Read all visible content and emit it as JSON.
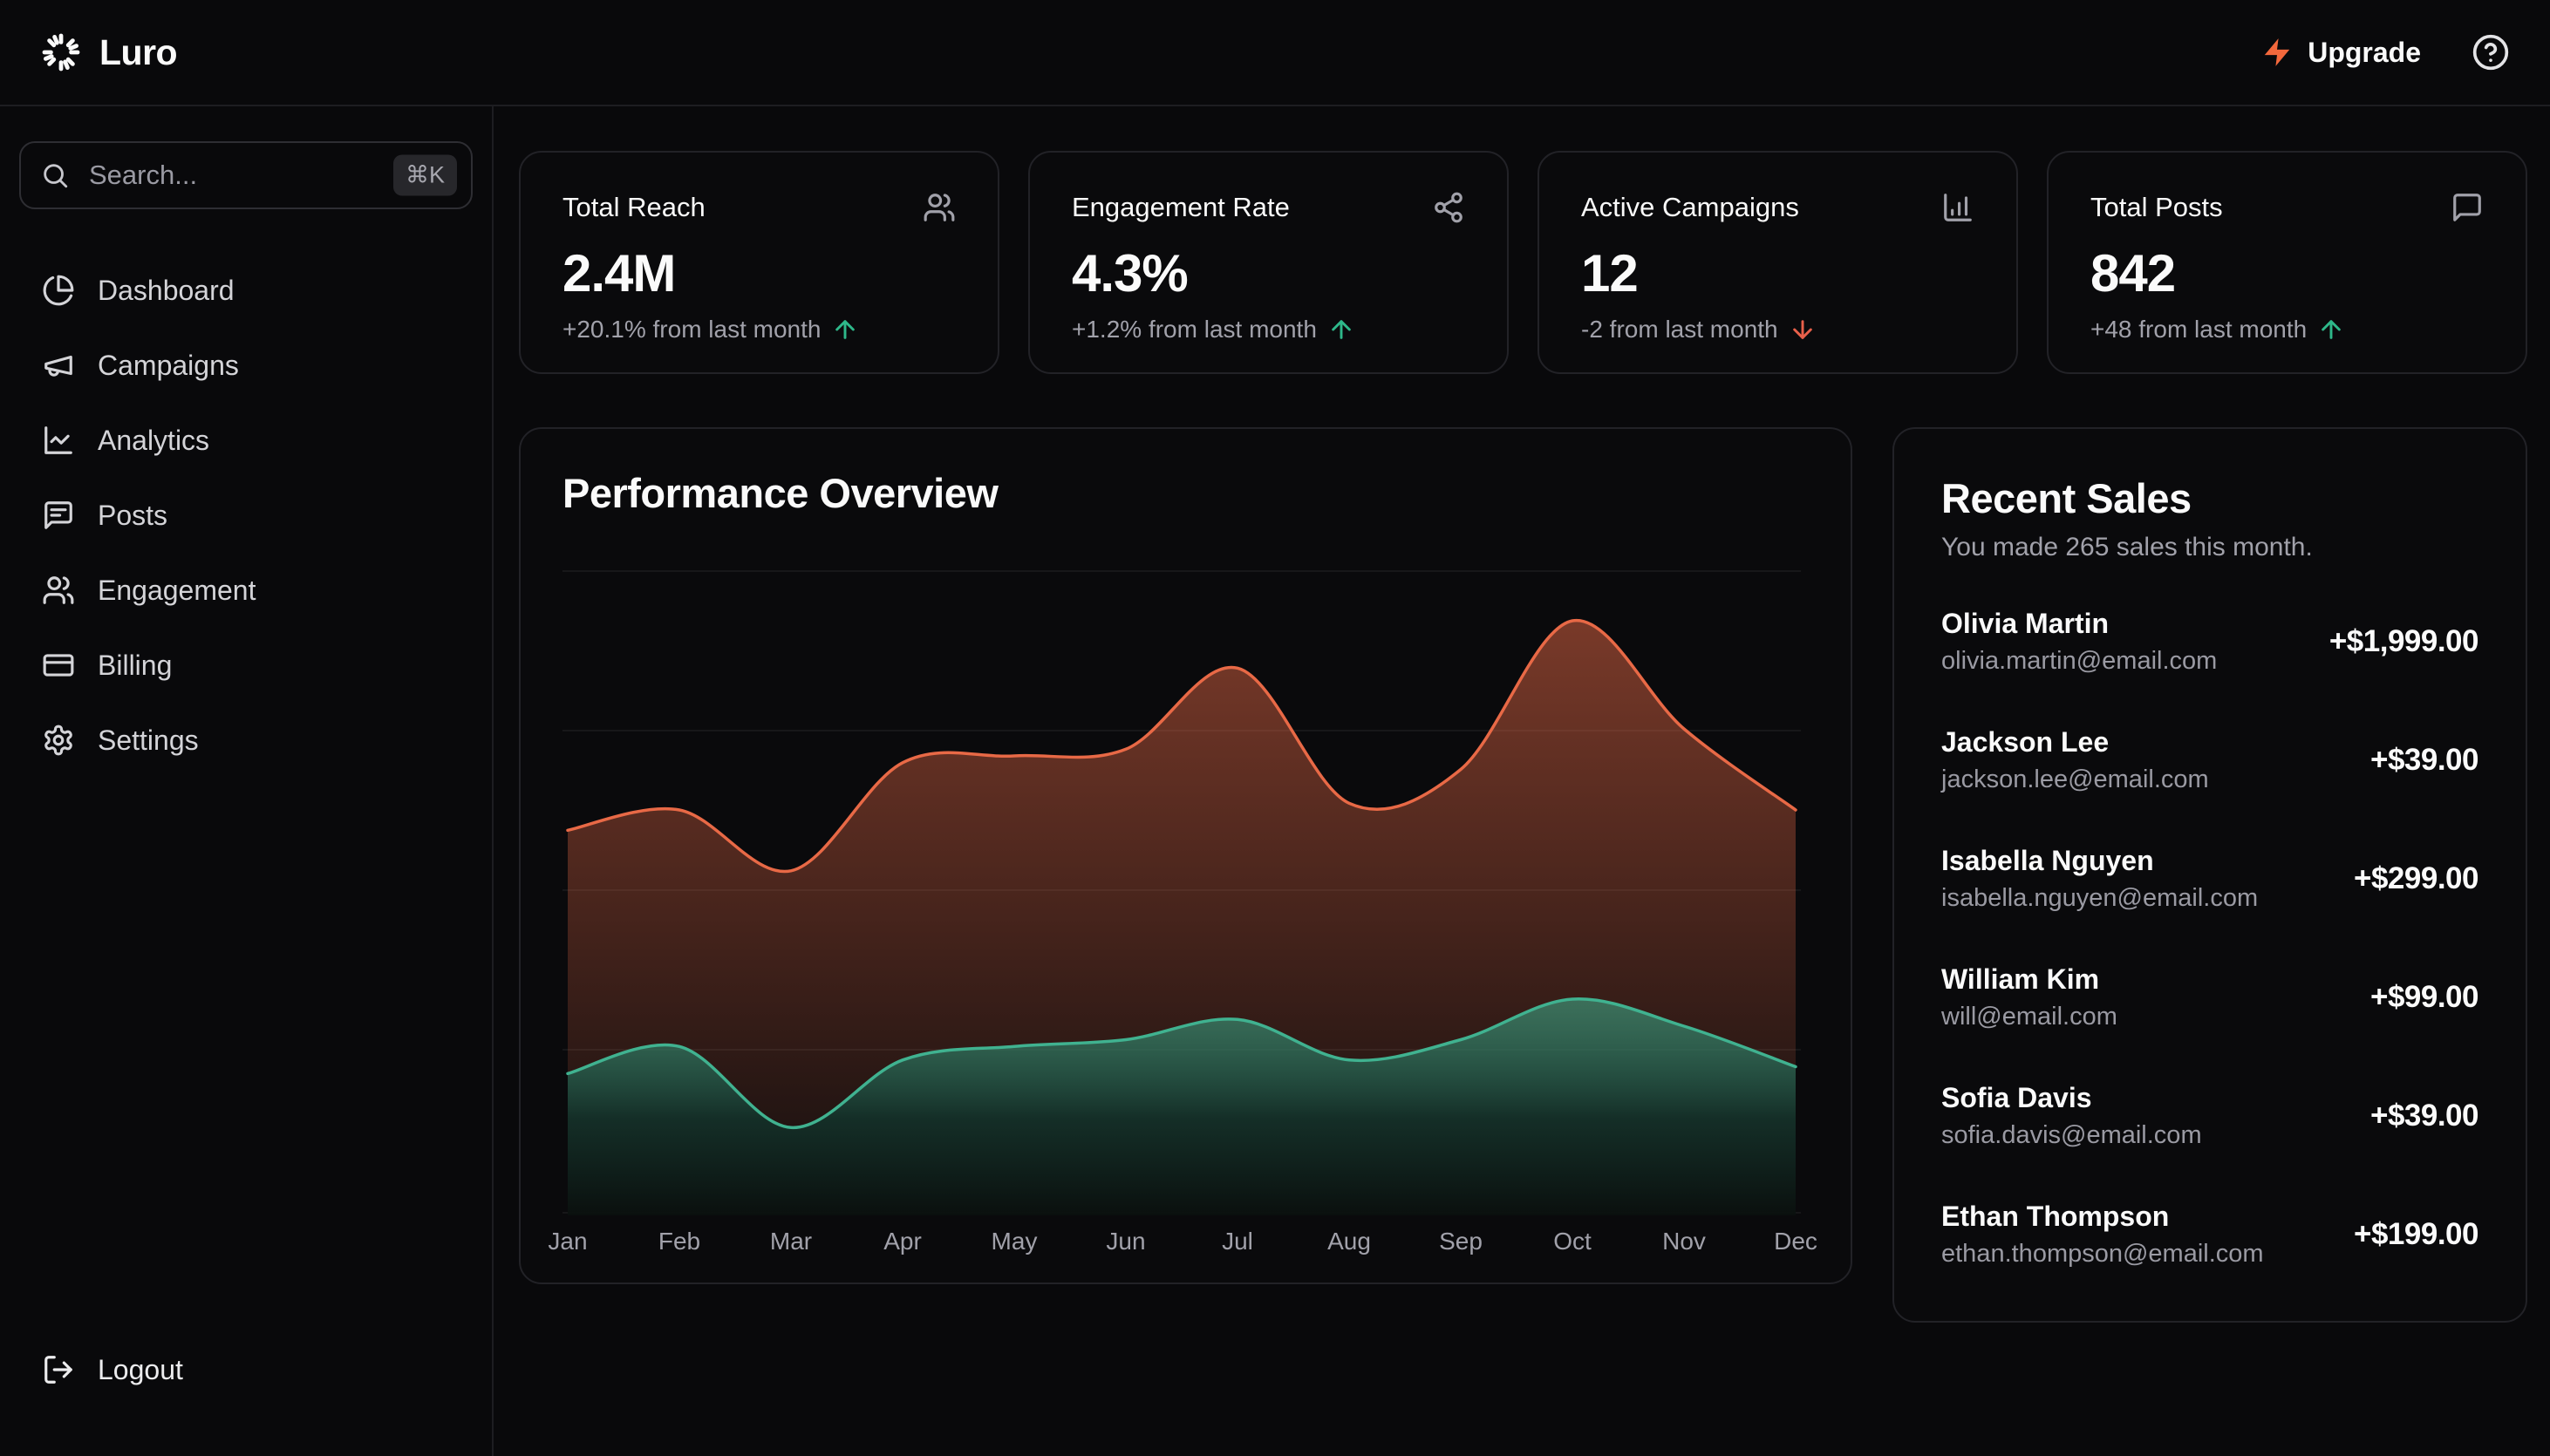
{
  "brand": {
    "name": "Luro",
    "logo_icon": "sunburst-spinner"
  },
  "header": {
    "upgrade_label": "Upgrade",
    "upgrade_icon": "lightning-bolt",
    "help_icon": "circle-question"
  },
  "sidebar": {
    "search": {
      "placeholder": "Search...",
      "shortcut": "⌘K",
      "icon": "magnifier"
    },
    "items": [
      {
        "label": "Dashboard",
        "icon": "pie-chart"
      },
      {
        "label": "Campaigns",
        "icon": "megaphone"
      },
      {
        "label": "Analytics",
        "icon": "line-chart"
      },
      {
        "label": "Posts",
        "icon": "message-square-text"
      },
      {
        "label": "Engagement",
        "icon": "users"
      },
      {
        "label": "Billing",
        "icon": "credit-card"
      },
      {
        "label": "Settings",
        "icon": "gear"
      }
    ],
    "logout": {
      "label": "Logout",
      "icon": "log-out"
    }
  },
  "stats": [
    {
      "title": "Total Reach",
      "icon": "users",
      "value": "2.4M",
      "delta": "+20.1% from last month",
      "trend": "up"
    },
    {
      "title": "Engagement Rate",
      "icon": "share-nodes",
      "value": "4.3%",
      "delta": "+1.2% from last month",
      "trend": "up"
    },
    {
      "title": "Active Campaigns",
      "icon": "bar-chart",
      "value": "12",
      "delta": "-2 from last month",
      "trend": "down"
    },
    {
      "title": "Total Posts",
      "icon": "message-square",
      "value": "842",
      "delta": "+48 from last month",
      "trend": "up"
    }
  ],
  "performance": {
    "title": "Performance Overview"
  },
  "chart_data": {
    "type": "area",
    "x": [
      "Jan",
      "Feb",
      "Mar",
      "Apr",
      "May",
      "Jun",
      "Jul",
      "Aug",
      "Sep",
      "Oct",
      "Nov",
      "Dec"
    ],
    "series": [
      {
        "name": "primary-orange",
        "color": "#e86946",
        "values": [
          57,
          60,
          51,
          67,
          68,
          69,
          81,
          61,
          66,
          88,
          72,
          60
        ]
      },
      {
        "name": "secondary-teal",
        "color": "#40b290",
        "values": [
          21,
          25,
          13,
          23,
          25,
          26,
          29,
          23,
          26,
          32,
          28,
          22
        ]
      }
    ],
    "ylim": [
      0,
      100
    ],
    "grid": "horizontal-only",
    "legend": "none",
    "title": "Performance Overview",
    "xlabel": "",
    "ylabel": ""
  },
  "recent_sales": {
    "title": "Recent Sales",
    "subtitle": "You made 265 sales this month.",
    "sales": [
      {
        "name": "Olivia Martin",
        "email": "olivia.martin@email.com",
        "amount": "+$1,999.00"
      },
      {
        "name": "Jackson Lee",
        "email": "jackson.lee@email.com",
        "amount": "+$39.00"
      },
      {
        "name": "Isabella Nguyen",
        "email": "isabella.nguyen@email.com",
        "amount": "+$299.00"
      },
      {
        "name": "William Kim",
        "email": "will@email.com",
        "amount": "+$99.00"
      },
      {
        "name": "Sofia Davis",
        "email": "sofia.davis@email.com",
        "amount": "+$39.00"
      },
      {
        "name": "Ethan Thompson",
        "email": "ethan.thompson@email.com",
        "amount": "+$199.00"
      }
    ]
  },
  "colors": {
    "background": "#09090b",
    "card_border": "#222227",
    "accent_orange": "#e86946",
    "accent_teal": "#40b290",
    "trend_up": "#2eb88a",
    "trend_down": "#e8604a",
    "muted_text": "#a1a1aa"
  }
}
